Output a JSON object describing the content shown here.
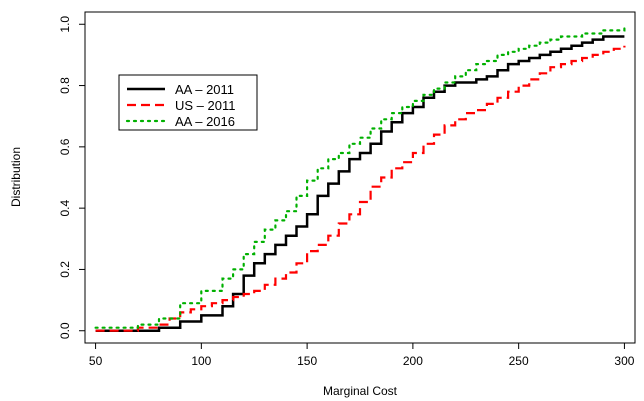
{
  "chart_data": {
    "type": "line",
    "xlabel": "Marginal Cost",
    "ylabel": "Distribution",
    "xlim": [
      45,
      305
    ],
    "ylim": [
      -0.04,
      1.04
    ],
    "x_ticks": [
      "50",
      "100",
      "150",
      "200",
      "250",
      "300"
    ],
    "y_ticks": [
      "0.0",
      "0.2",
      "0.4",
      "0.6",
      "0.8",
      "1.0"
    ],
    "grid": false,
    "legend_position": "upper-left",
    "series": [
      {
        "name": "AA – 2011",
        "color": "#000000",
        "dash": "solid",
        "x": [
          50,
          60,
          70,
          80,
          90,
          100,
          110,
          115,
          120,
          125,
          130,
          135,
          140,
          145,
          150,
          155,
          160,
          165,
          170,
          175,
          180,
          185,
          190,
          195,
          200,
          205,
          210,
          215,
          220,
          225,
          230,
          235,
          240,
          245,
          250,
          255,
          260,
          265,
          270,
          275,
          280,
          285,
          290,
          295,
          300
        ],
        "y": [
          0.0,
          0.0,
          0.0,
          0.01,
          0.03,
          0.05,
          0.08,
          0.12,
          0.18,
          0.22,
          0.25,
          0.28,
          0.31,
          0.34,
          0.38,
          0.44,
          0.48,
          0.52,
          0.56,
          0.58,
          0.61,
          0.65,
          0.68,
          0.71,
          0.73,
          0.76,
          0.78,
          0.8,
          0.81,
          0.81,
          0.82,
          0.83,
          0.85,
          0.87,
          0.88,
          0.89,
          0.9,
          0.91,
          0.92,
          0.93,
          0.94,
          0.95,
          0.96,
          0.96,
          0.96
        ]
      },
      {
        "name": "US – 2011",
        "color": "#ff0000",
        "dash": "dashed",
        "x": [
          50,
          60,
          70,
          80,
          85,
          90,
          95,
          100,
          105,
          110,
          115,
          120,
          125,
          130,
          135,
          140,
          145,
          150,
          155,
          160,
          165,
          170,
          175,
          180,
          185,
          190,
          195,
          200,
          205,
          210,
          215,
          220,
          225,
          230,
          235,
          240,
          245,
          250,
          255,
          260,
          265,
          270,
          275,
          280,
          285,
          290,
          295,
          300
        ],
        "y": [
          0.0,
          0.0,
          0.01,
          0.02,
          0.04,
          0.06,
          0.07,
          0.08,
          0.09,
          0.1,
          0.11,
          0.12,
          0.13,
          0.15,
          0.17,
          0.19,
          0.22,
          0.26,
          0.28,
          0.31,
          0.35,
          0.38,
          0.42,
          0.47,
          0.5,
          0.53,
          0.55,
          0.58,
          0.61,
          0.64,
          0.67,
          0.69,
          0.71,
          0.72,
          0.74,
          0.76,
          0.78,
          0.8,
          0.82,
          0.84,
          0.86,
          0.87,
          0.88,
          0.89,
          0.9,
          0.91,
          0.92,
          0.93
        ]
      },
      {
        "name": "AA – 2016",
        "color": "#00b000",
        "dash": "dotted",
        "x": [
          50,
          60,
          70,
          80,
          90,
          100,
          110,
          115,
          120,
          125,
          130,
          135,
          140,
          145,
          150,
          155,
          160,
          165,
          170,
          175,
          180,
          185,
          190,
          195,
          200,
          205,
          210,
          215,
          220,
          225,
          230,
          235,
          240,
          245,
          250,
          255,
          260,
          265,
          270,
          275,
          280,
          285,
          290,
          295,
          300
        ],
        "y": [
          0.01,
          0.01,
          0.02,
          0.04,
          0.09,
          0.13,
          0.17,
          0.2,
          0.25,
          0.29,
          0.33,
          0.36,
          0.39,
          0.44,
          0.49,
          0.53,
          0.56,
          0.58,
          0.61,
          0.63,
          0.66,
          0.69,
          0.71,
          0.73,
          0.75,
          0.77,
          0.79,
          0.81,
          0.83,
          0.85,
          0.87,
          0.88,
          0.9,
          0.91,
          0.92,
          0.93,
          0.94,
          0.95,
          0.96,
          0.96,
          0.97,
          0.97,
          0.98,
          0.98,
          0.99
        ]
      }
    ]
  }
}
